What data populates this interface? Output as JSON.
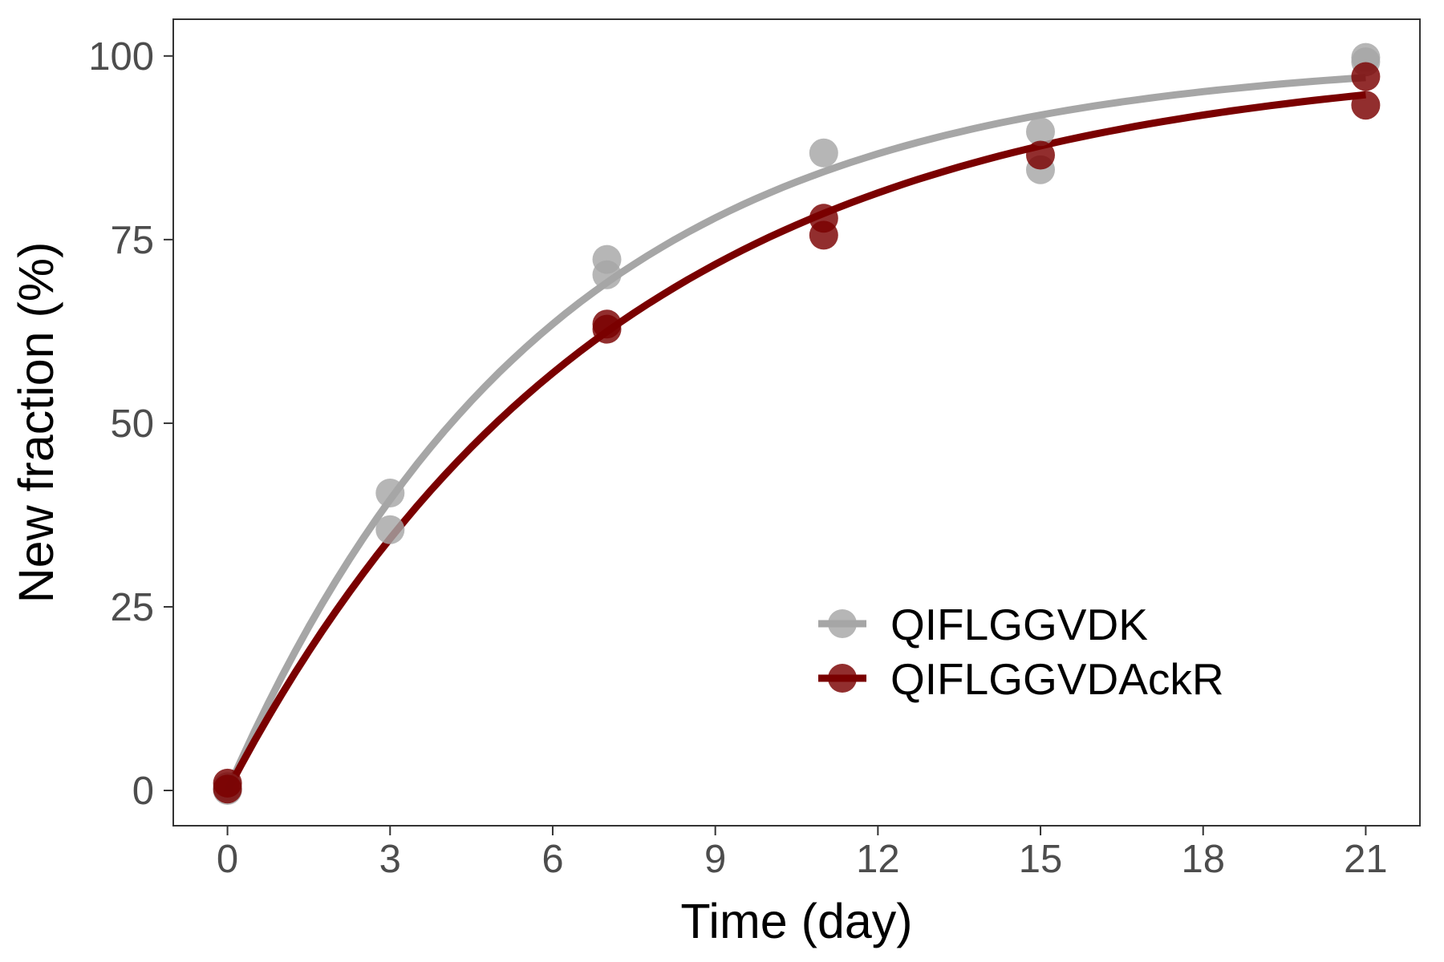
{
  "chart_data": {
    "type": "scatter",
    "title": "",
    "xlabel": "Time (day)",
    "ylabel": "New fraction (%)",
    "xlim": [
      -1.0,
      22.0
    ],
    "ylim": [
      -4.8,
      105.0
    ],
    "xticks": [
      0,
      3,
      6,
      9,
      12,
      15,
      18,
      21
    ],
    "yticks": [
      0,
      25,
      50,
      75,
      100
    ],
    "grid": false,
    "legend_position": "bottom-right",
    "series": [
      {
        "name": "QIFLGGVDK",
        "color": "#a6a6a6",
        "rate": 0.168,
        "points": [
          {
            "x": 0,
            "y": 0.5
          },
          {
            "x": 0,
            "y": 0.0
          },
          {
            "x": 3,
            "y": 40.5
          },
          {
            "x": 3,
            "y": 35.5
          },
          {
            "x": 7,
            "y": 72.3
          },
          {
            "x": 7,
            "y": 70.2
          },
          {
            "x": 11,
            "y": 86.8
          },
          {
            "x": 15,
            "y": 89.7
          },
          {
            "x": 15,
            "y": 84.5
          },
          {
            "x": 21,
            "y": 99.8
          },
          {
            "x": 21,
            "y": 99.2
          }
        ]
      },
      {
        "name": "QIFLGGVDAckR",
        "color": "#7a0000",
        "rate": 0.14,
        "points": [
          {
            "x": 0,
            "y": 1.0
          },
          {
            "x": 0,
            "y": 0.2
          },
          {
            "x": 7,
            "y": 63.5
          },
          {
            "x": 7,
            "y": 62.8
          },
          {
            "x": 11,
            "y": 77.9
          },
          {
            "x": 11,
            "y": 75.6
          },
          {
            "x": 15,
            "y": 86.5
          },
          {
            "x": 21,
            "y": 97.2
          },
          {
            "x": 21,
            "y": 93.3
          }
        ]
      }
    ]
  }
}
